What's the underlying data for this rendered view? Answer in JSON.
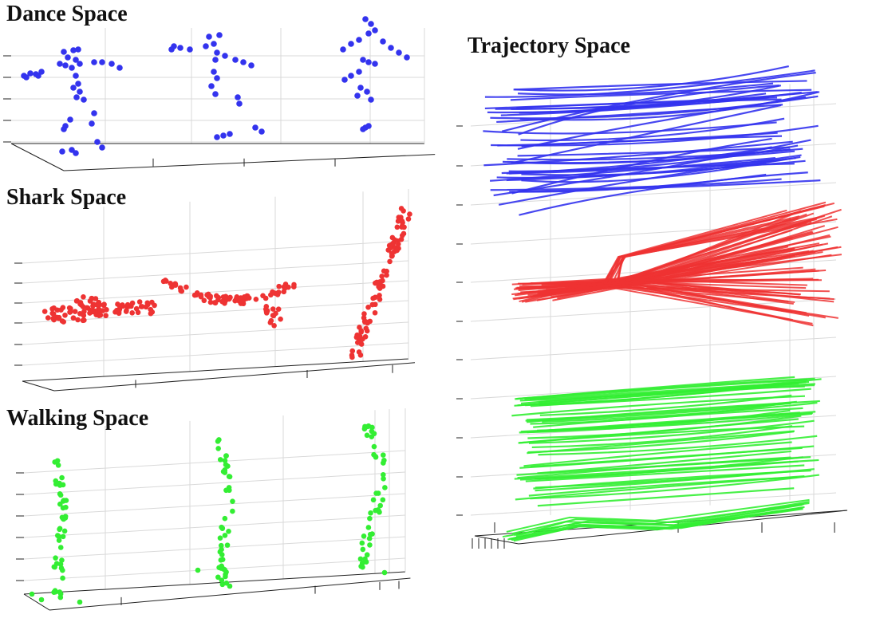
{
  "titles": {
    "dance": "Dance Space",
    "shark": "Shark Space",
    "walking": "Walking Space",
    "trajectory": "Trajectory Space"
  },
  "colors": {
    "dance": "#3333ee",
    "shark": "#ee3333",
    "walking": "#33ee33",
    "grid": "#d9d9d9",
    "axis": "#222222"
  }
}
